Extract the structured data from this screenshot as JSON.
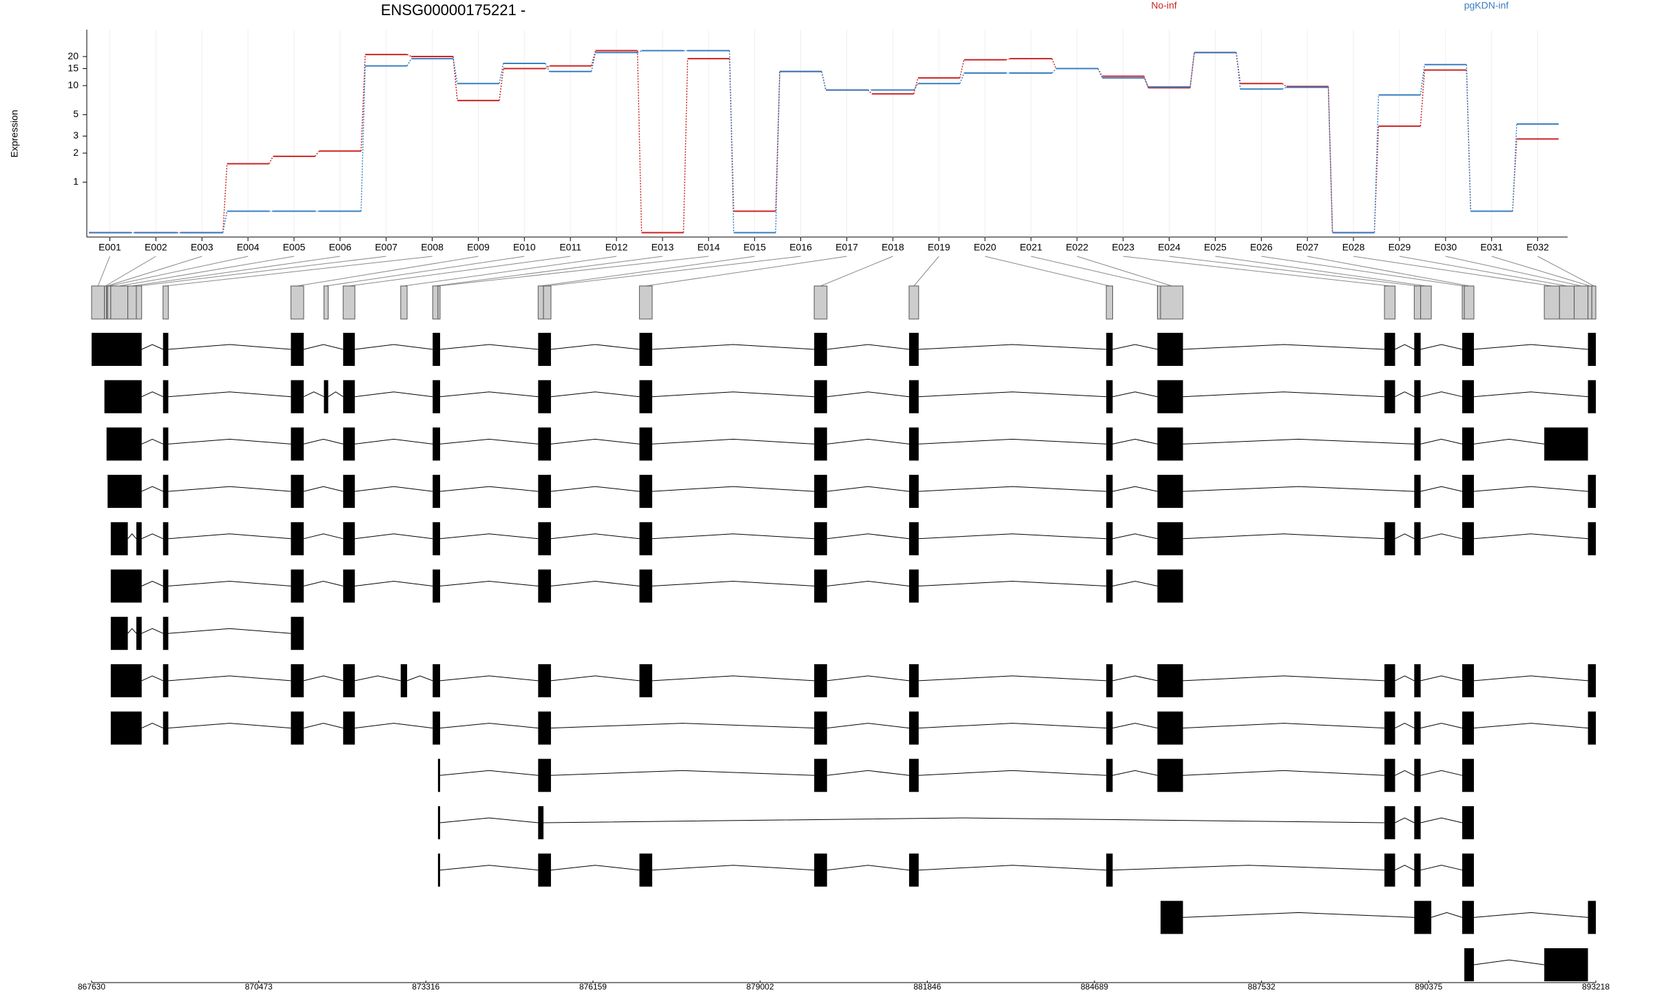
{
  "chart_data": {
    "type": "step",
    "title": "ENSG00000175221 -",
    "y_label": "Expression",
    "categories": [
      "E001",
      "E002",
      "E003",
      "E004",
      "E005",
      "E006",
      "E007",
      "E008",
      "E009",
      "E010",
      "E011",
      "E012",
      "E013",
      "E014",
      "E015",
      "E016",
      "E017",
      "E018",
      "E019",
      "E020",
      "E021",
      "E022",
      "E023",
      "E024",
      "E025",
      "E026",
      "E027",
      "E028",
      "E029",
      "E030",
      "E031",
      "E032"
    ],
    "series": [
      {
        "name": "No-inf",
        "color": "#cc2222",
        "values": [
          0.3,
          0.3,
          0.3,
          1.55,
          1.85,
          2.1,
          21,
          20,
          7,
          15,
          16,
          23,
          0.3,
          19,
          0.5,
          14,
          9,
          8.2,
          12,
          18.5,
          19,
          15,
          12.5,
          9.5,
          22,
          10.5,
          9.8,
          0.3,
          3.8,
          14.5,
          0.5,
          2.8
        ]
      },
      {
        "name": "pgKDN-inf",
        "color": "#3a7ebf",
        "values": [
          0.3,
          0.3,
          0.3,
          0.5,
          0.5,
          0.5,
          16,
          19,
          10.5,
          17,
          14,
          22,
          23,
          23,
          0.3,
          14,
          9,
          9,
          10.5,
          13.5,
          13.5,
          15,
          12,
          9.7,
          22,
          9.2,
          9.6,
          0.3,
          8,
          16.5,
          0.5,
          4
        ]
      }
    ],
    "ylim": [
      0.27,
      38
    ],
    "yticks": [
      1,
      2,
      3,
      5,
      10,
      15,
      20
    ],
    "yscale": "log",
    "grid": true,
    "gene_model": {
      "xlim": [
        867630,
        893218
      ],
      "xticks": [
        867630,
        870473,
        873316,
        876159,
        879002,
        881846,
        884689,
        887532,
        890375,
        893218
      ],
      "bin_color": "#cccccc",
      "exon_color": "#000000",
      "exon_bins": [
        [
          867630,
          867848
        ],
        [
          867848,
          867884
        ],
        [
          867884,
          867902
        ],
        [
          867902,
          867956
        ],
        [
          867956,
          868246
        ],
        [
          868246,
          868391
        ],
        [
          868391,
          868482
        ],
        [
          868845,
          868935
        ],
        [
          871020,
          871238
        ],
        [
          871582,
          871655
        ],
        [
          871909,
          872108
        ],
        [
          872888,
          872997
        ],
        [
          873432,
          873522
        ],
        [
          873522,
          873558
        ],
        [
          875226,
          875317
        ],
        [
          875317,
          875444
        ],
        [
          876949,
          877166
        ],
        [
          879922,
          880140
        ],
        [
          881536,
          881699
        ],
        [
          884890,
          884999
        ],
        [
          885760,
          885814
        ],
        [
          885814,
          886195
        ],
        [
          889622,
          889803
        ],
        [
          890129,
          890238
        ],
        [
          890238,
          890419
        ],
        [
          890945,
          890981
        ],
        [
          890981,
          891144
        ],
        [
          892341,
          892600
        ],
        [
          892600,
          892850
        ],
        [
          892850,
          893084
        ],
        [
          893084,
          893150
        ],
        [
          893150,
          893218
        ]
      ],
      "transcripts": [
        [
          [
            867630,
            868482
          ],
          [
            868845,
            868935
          ],
          [
            871020,
            871238
          ],
          [
            871909,
            872108
          ],
          [
            873432,
            873558
          ],
          [
            875226,
            875444
          ],
          [
            876949,
            877166
          ],
          [
            879922,
            880140
          ],
          [
            881536,
            881699
          ],
          [
            884890,
            884999
          ],
          [
            885760,
            886195
          ],
          [
            889622,
            889803
          ],
          [
            890129,
            890238
          ],
          [
            890945,
            891144
          ],
          [
            893084,
            893218
          ]
        ],
        [
          [
            867848,
            868482
          ],
          [
            868845,
            868935
          ],
          [
            871020,
            871238
          ],
          [
            871582,
            871655
          ],
          [
            871909,
            872108
          ],
          [
            873432,
            873558
          ],
          [
            875226,
            875444
          ],
          [
            876949,
            877166
          ],
          [
            879922,
            880140
          ],
          [
            881536,
            881699
          ],
          [
            884890,
            884999
          ],
          [
            885760,
            886195
          ],
          [
            889622,
            889803
          ],
          [
            890129,
            890238
          ],
          [
            890945,
            891144
          ],
          [
            893084,
            893218
          ]
        ],
        [
          [
            867884,
            868482
          ],
          [
            868845,
            868935
          ],
          [
            871020,
            871238
          ],
          [
            871909,
            872108
          ],
          [
            873432,
            873558
          ],
          [
            875226,
            875444
          ],
          [
            876949,
            877166
          ],
          [
            879922,
            880140
          ],
          [
            881536,
            881699
          ],
          [
            884890,
            884999
          ],
          [
            885760,
            886195
          ],
          [
            890129,
            890238
          ],
          [
            890945,
            891144
          ],
          [
            892341,
            893084
          ]
        ],
        [
          [
            867902,
            868482
          ],
          [
            868845,
            868935
          ],
          [
            871020,
            871238
          ],
          [
            871909,
            872108
          ],
          [
            873432,
            873558
          ],
          [
            875226,
            875444
          ],
          [
            876949,
            877166
          ],
          [
            879922,
            880140
          ],
          [
            881536,
            881699
          ],
          [
            884890,
            884999
          ],
          [
            885760,
            886195
          ],
          [
            890129,
            890238
          ],
          [
            890945,
            891144
          ],
          [
            893084,
            893218
          ]
        ],
        [
          [
            867956,
            868246
          ],
          [
            868391,
            868482
          ],
          [
            868845,
            868935
          ],
          [
            871020,
            871238
          ],
          [
            871909,
            872108
          ],
          [
            873432,
            873558
          ],
          [
            875226,
            875444
          ],
          [
            876949,
            877166
          ],
          [
            879922,
            880140
          ],
          [
            881536,
            881699
          ],
          [
            884890,
            884999
          ],
          [
            885760,
            886195
          ],
          [
            889622,
            889803
          ],
          [
            890129,
            890238
          ],
          [
            890945,
            891144
          ],
          [
            893084,
            893218
          ]
        ],
        [
          [
            867956,
            868482
          ],
          [
            868845,
            868935
          ],
          [
            871020,
            871238
          ],
          [
            871909,
            872108
          ],
          [
            873432,
            873558
          ],
          [
            875226,
            875444
          ],
          [
            876949,
            877166
          ],
          [
            879922,
            880140
          ],
          [
            881536,
            881699
          ],
          [
            884890,
            884999
          ],
          [
            885760,
            886195
          ]
        ],
        [
          [
            867956,
            868246
          ],
          [
            868391,
            868482
          ],
          [
            868845,
            868935
          ],
          [
            871020,
            871238
          ]
        ],
        [
          [
            867956,
            868482
          ],
          [
            868845,
            868935
          ],
          [
            871020,
            871238
          ],
          [
            871909,
            872108
          ],
          [
            872888,
            872997
          ],
          [
            873432,
            873558
          ],
          [
            875226,
            875444
          ],
          [
            876949,
            877166
          ],
          [
            879922,
            880140
          ],
          [
            881536,
            881699
          ],
          [
            884890,
            884999
          ],
          [
            885760,
            886195
          ],
          [
            889622,
            889803
          ],
          [
            890129,
            890238
          ],
          [
            890945,
            891144
          ],
          [
            893084,
            893218
          ]
        ],
        [
          [
            867956,
            868482
          ],
          [
            868845,
            868935
          ],
          [
            871020,
            871238
          ],
          [
            871909,
            872108
          ],
          [
            873432,
            873558
          ],
          [
            875226,
            875444
          ],
          [
            879922,
            880140
          ],
          [
            881536,
            881699
          ],
          [
            884890,
            884999
          ],
          [
            885760,
            886195
          ],
          [
            889622,
            889803
          ],
          [
            890129,
            890238
          ],
          [
            890945,
            891144
          ],
          [
            893084,
            893218
          ]
        ],
        [
          [
            873522,
            873558
          ],
          [
            875226,
            875444
          ],
          [
            879922,
            880140
          ],
          [
            881536,
            881699
          ],
          [
            884890,
            884999
          ],
          [
            885760,
            886195
          ],
          [
            889622,
            889803
          ],
          [
            890129,
            890238
          ],
          [
            890945,
            891144
          ]
        ],
        [
          [
            873522,
            873558
          ],
          [
            875226,
            875317
          ],
          [
            889622,
            889803
          ],
          [
            890129,
            890238
          ],
          [
            890945,
            891144
          ]
        ],
        [
          [
            873522,
            873558
          ],
          [
            875226,
            875444
          ],
          [
            876949,
            877166
          ],
          [
            879922,
            880140
          ],
          [
            881536,
            881699
          ],
          [
            884890,
            884999
          ],
          [
            889622,
            889803
          ],
          [
            890129,
            890238
          ],
          [
            890945,
            891144
          ]
        ],
        [
          [
            885814,
            886195
          ],
          [
            890129,
            890419
          ],
          [
            890945,
            891144
          ],
          [
            893084,
            893218
          ]
        ],
        [
          [
            890981,
            891144
          ],
          [
            892341,
            893084
          ]
        ]
      ]
    }
  }
}
